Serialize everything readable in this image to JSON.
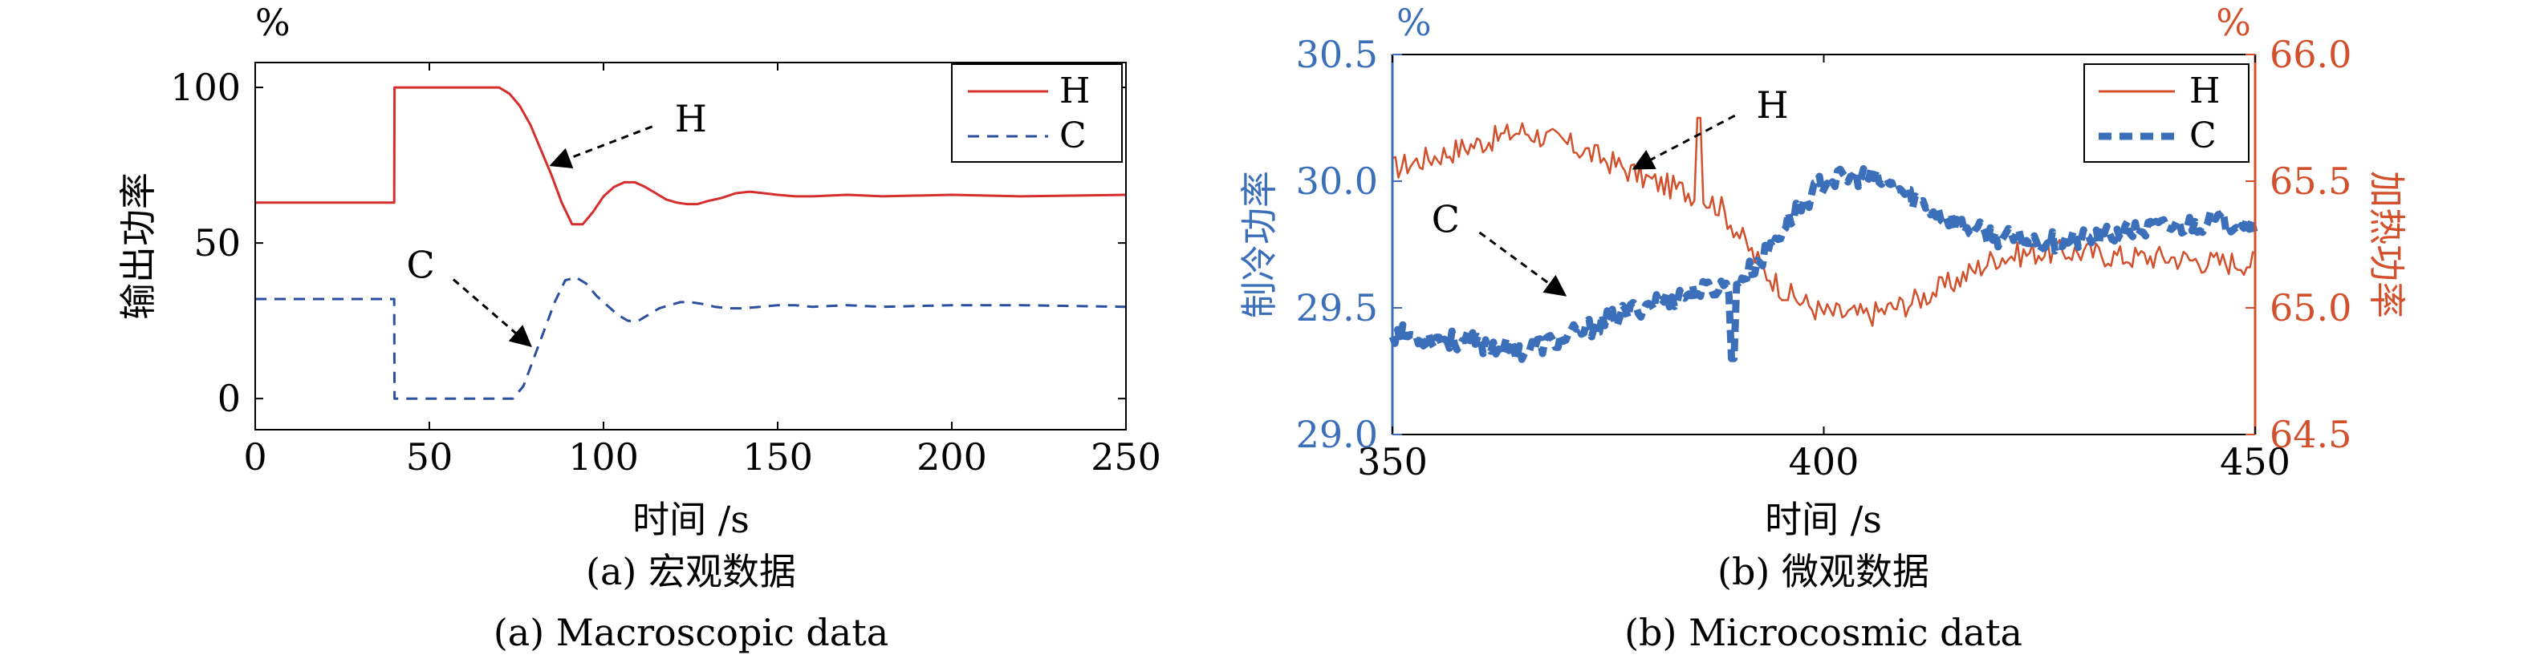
{
  "chart_data": [
    {
      "id": "a",
      "type": "line",
      "caption_cn": "(a) 宏观数据",
      "caption_en": "(a) Macroscopic data",
      "xlabel": "时间 /s",
      "ylabel": "输出功率",
      "yunit": "%",
      "xlim": [
        0,
        250
      ],
      "ylim": [
        -10,
        108
      ],
      "xticks": [
        0,
        50,
        100,
        150,
        200,
        250
      ],
      "yticks": [
        0,
        50,
        100
      ],
      "legend": {
        "position": "top-right",
        "entries": [
          "H",
          "C"
        ]
      },
      "annotations": [
        {
          "text": "H",
          "from": [
            120,
            90
          ],
          "to": [
            85,
            75
          ]
        },
        {
          "text": "C",
          "from": [
            52,
            43
          ],
          "to": [
            79,
            17
          ]
        }
      ],
      "series": [
        {
          "name": "H",
          "color": "#d62d2d",
          "style": "solid",
          "x": [
            0,
            39.9,
            40,
            70,
            73,
            76,
            79,
            82,
            85,
            88,
            91,
            94,
            97,
            100,
            103,
            106,
            109,
            112,
            115,
            118,
            121,
            124,
            127,
            130,
            134,
            138,
            142,
            146,
            150,
            155,
            160,
            170,
            180,
            200,
            220,
            250
          ],
          "y": [
            63,
            63,
            100,
            100,
            98,
            94,
            88,
            80,
            72,
            63,
            56,
            56,
            60,
            65,
            68,
            69.5,
            69.5,
            68,
            66,
            64,
            63,
            62.5,
            62.5,
            63.5,
            64.5,
            66,
            66.5,
            66,
            65.5,
            65,
            65,
            65.5,
            65,
            65.5,
            65,
            65.5
          ]
        },
        {
          "name": "C",
          "color": "#2b4f9e",
          "style": "dashed",
          "x": [
            0,
            39.9,
            40,
            74,
            77,
            80,
            83,
            86,
            89,
            92,
            95,
            98,
            101,
            104,
            107,
            110,
            113,
            116,
            119,
            122,
            125,
            128,
            132,
            136,
            140,
            145,
            150,
            155,
            160,
            170,
            180,
            200,
            220,
            250
          ],
          "y": [
            32,
            32,
            0,
            0,
            4,
            13,
            22,
            31,
            38,
            39,
            37,
            33,
            30,
            27,
            25,
            25,
            27,
            29,
            30,
            31,
            31,
            30.5,
            29.5,
            29,
            29,
            29.5,
            30,
            30,
            29.5,
            30,
            29.5,
            30,
            30,
            29.5
          ]
        }
      ]
    },
    {
      "id": "b",
      "type": "line",
      "caption_cn": "(b) 微观数据",
      "caption_en": "(b) Microcosmic data",
      "xlabel": "时间 /s",
      "ylabel_left": "制冷功率",
      "ylabel_right": "加热功率",
      "yunit_left": "%",
      "yunit_right": "%",
      "xlim": [
        350,
        450
      ],
      "ylim_left": [
        29.0,
        30.5
      ],
      "ylim_right": [
        64.5,
        66.0
      ],
      "xticks": [
        350,
        400,
        450
      ],
      "yticks_left": [
        "29.0",
        "29.5",
        "30.0",
        "30.5"
      ],
      "yticks_right": [
        "64.5",
        "65.0",
        "65.5",
        "66.0"
      ],
      "left_axis_color": "#3b6fb9",
      "right_axis_color": "#d2502c",
      "legend": {
        "position": "top-right",
        "entries": [
          "H",
          "C"
        ]
      },
      "annotations": [
        {
          "text": "H",
          "from": [
            392,
            30.3
          ],
          "to": [
            378,
            30.05
          ]
        },
        {
          "text": "C",
          "from": [
            358,
            29.85
          ],
          "to": [
            370,
            29.55
          ]
        }
      ],
      "series": [
        {
          "name": "H",
          "axis": "right",
          "color": "#d2502c",
          "style": "solid",
          "x": [
            350,
            355,
            360,
            365,
            370,
            375,
            380,
            385,
            388,
            390,
            393,
            396,
            400,
            405,
            410,
            415,
            420,
            425,
            430,
            435,
            440,
            445,
            450
          ],
          "y": [
            65.55,
            65.6,
            65.65,
            65.7,
            65.65,
            65.58,
            65.5,
            65.45,
            65.4,
            65.3,
            65.15,
            65.05,
            64.98,
            64.97,
            65.02,
            65.1,
            65.2,
            65.22,
            65.22,
            65.2,
            65.2,
            65.18,
            65.18
          ],
          "noise_amplitude": 0.05
        },
        {
          "name": "C",
          "axis": "left",
          "color": "#3b6fb9",
          "style": "dashed",
          "x": [
            350,
            355,
            360,
            365,
            370,
            375,
            380,
            385,
            390,
            393,
            396,
            400,
            405,
            408,
            412,
            416,
            420,
            425,
            430,
            435,
            440,
            445,
            450
          ],
          "y": [
            29.4,
            29.38,
            29.36,
            29.33,
            29.38,
            29.45,
            29.52,
            29.56,
            29.6,
            29.7,
            29.85,
            30.0,
            30.02,
            29.98,
            29.9,
            29.82,
            29.78,
            29.76,
            29.77,
            29.8,
            29.82,
            29.84,
            29.84
          ],
          "noise_amplitude": 0.04
        }
      ]
    }
  ]
}
